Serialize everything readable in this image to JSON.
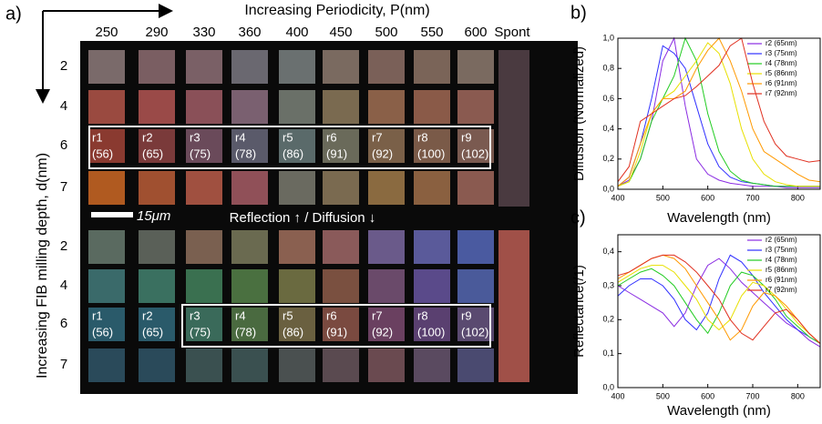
{
  "panel_a": {
    "label": "a)",
    "x_title": "Increasing Periodicity, P(nm)",
    "y_title": "Increasing FIB milling depth, d(nm)",
    "columns": [
      "250",
      "290",
      "330",
      "360",
      "400",
      "450",
      "500",
      "550",
      "600",
      "Spont"
    ],
    "rows_top": [
      "2",
      "4",
      "6",
      "7"
    ],
    "rows_bottom": [
      "2",
      "4",
      "6",
      "7"
    ],
    "scale": "15μm",
    "divider": "Reflection ↑  /  Diffusion ↓",
    "samples": [
      {
        "name": "r1",
        "depth": "(56)"
      },
      {
        "name": "r2",
        "depth": "(65)"
      },
      {
        "name": "r3",
        "depth": "(75)"
      },
      {
        "name": "r4",
        "depth": "(78)"
      },
      {
        "name": "r5",
        "depth": "(86)"
      },
      {
        "name": "r6",
        "depth": "(91)"
      },
      {
        "name": "r7",
        "depth": "(92)"
      },
      {
        "name": "r8",
        "depth": "(100)"
      },
      {
        "name": "r9",
        "depth": "(102)"
      }
    ],
    "tile_colors": [
      [
        "#7a6a6a",
        "#7a5e62",
        "#7a6066",
        "#6a6870",
        "#6a7070",
        "#7a6a60",
        "#7a6058",
        "#7a6458",
        "#7a6a60"
      ],
      [
        "#9a4a40",
        "#9a4a48",
        "#8a5058",
        "#7a6070",
        "#6a7068",
        "#7a6a50",
        "#8a6048",
        "#8a5a48",
        "#8a5a50"
      ],
      [
        "#8a3a30",
        "#7a3a3a",
        "#6a4a5a",
        "#5a5a6a",
        "#5a6a6a",
        "#6a6a5a",
        "#7a6048",
        "#7a5a48",
        "#7a5a50"
      ],
      [
        "#b05a20",
        "#a05030",
        "#a05040",
        "#905058",
        "#6a6a60",
        "#7a6a50",
        "#8a6a40",
        "#8a6040",
        "#8a5a50"
      ],
      [
        "#5a6a60",
        "#5a6058",
        "#7a6050",
        "#6a6a50",
        "#8a6050",
        "#8a5a5a",
        "#6a5a8a",
        "#5a5a9a",
        "#4a5aa0"
      ],
      [
        "#3a6a6a",
        "#3a7060",
        "#3a7050",
        "#4a7040",
        "#6a6a40",
        "#7a5040",
        "#6a4a6a",
        "#5a4a8a",
        "#4a5a9a"
      ],
      [
        "#2a5a6a",
        "#2a5a6a",
        "#3a6a5a",
        "#4a6a40",
        "#6a6040",
        "#7a4a40",
        "#6a4060",
        "#5a4070",
        "#5a4a70"
      ],
      [
        "#2a4a5a",
        "#2a4a5a",
        "#3a5050",
        "#3a5050",
        "#4a5050",
        "#5a4a50",
        "#6a4a50",
        "#5a4a60",
        "#4a4a70"
      ]
    ],
    "spont_colors": [
      "#4a3a40",
      "#a05048"
    ]
  },
  "chart_data": [
    {
      "type": "line",
      "label": "b)",
      "x_label": "Wavelength (nm)",
      "y_label": "Diffusion (Normalized)",
      "x": [
        400,
        425,
        450,
        475,
        500,
        525,
        550,
        575,
        600,
        625,
        650,
        675,
        700,
        725,
        750,
        775,
        800,
        825,
        850
      ],
      "xlim": [
        400,
        850
      ],
      "xticks": [
        400,
        500,
        600,
        700,
        800
      ],
      "ylim": [
        0,
        1.0
      ],
      "yticks": [
        {
          "value": 0,
          "label": "0,0"
        },
        {
          "value": 0.2,
          "label": "0,2"
        },
        {
          "value": 0.4,
          "label": "0,4"
        },
        {
          "value": 0.6,
          "label": "0,6"
        },
        {
          "value": 0.8,
          "label": "0,8"
        },
        {
          "value": 1.0,
          "label": "1,0"
        }
      ],
      "series": [
        {
          "name": "r2 (65nm)",
          "color": "#8a2be2",
          "values": [
            0.02,
            0.06,
            0.2,
            0.45,
            0.85,
            1.0,
            0.55,
            0.2,
            0.1,
            0.06,
            0.04,
            0.03,
            0.02,
            0.02,
            0.02,
            0.01,
            0.01,
            0.01,
            0.01
          ]
        },
        {
          "name": "r3 (75nm)",
          "color": "#3030ff",
          "values": [
            0.02,
            0.08,
            0.3,
            0.6,
            0.95,
            0.9,
            0.8,
            0.55,
            0.3,
            0.15,
            0.08,
            0.05,
            0.04,
            0.03,
            0.02,
            0.02,
            0.02,
            0.02,
            0.02
          ]
        },
        {
          "name": "r4 (78nm)",
          "color": "#22cc22",
          "values": [
            0.02,
            0.05,
            0.2,
            0.45,
            0.6,
            0.75,
            1.0,
            0.85,
            0.5,
            0.25,
            0.12,
            0.06,
            0.04,
            0.03,
            0.02,
            0.02,
            0.02,
            0.02,
            0.02
          ]
        },
        {
          "name": "r5 (86nm)",
          "color": "#e8e000",
          "values": [
            0.02,
            0.05,
            0.25,
            0.5,
            0.6,
            0.65,
            0.75,
            0.85,
            0.97,
            0.9,
            0.7,
            0.4,
            0.2,
            0.1,
            0.05,
            0.03,
            0.02,
            0.02,
            0.02
          ]
        },
        {
          "name": "r6 (91nm)",
          "color": "#ff9900",
          "values": [
            0.02,
            0.08,
            0.3,
            0.5,
            0.6,
            0.6,
            0.65,
            0.8,
            0.92,
            1.0,
            0.85,
            0.65,
            0.4,
            0.25,
            0.2,
            0.15,
            0.1,
            0.06,
            0.05
          ]
        },
        {
          "name": "r7 (92nm)",
          "color": "#e03020",
          "values": [
            0.05,
            0.15,
            0.45,
            0.5,
            0.55,
            0.6,
            0.62,
            0.68,
            0.75,
            0.82,
            0.95,
            1.0,
            0.7,
            0.45,
            0.3,
            0.22,
            0.2,
            0.18,
            0.19
          ]
        }
      ]
    },
    {
      "type": "line",
      "label": "c)",
      "x_label": "Wavelength (nm)",
      "y_label": "Reflectance(/1)",
      "x": [
        400,
        425,
        450,
        475,
        500,
        525,
        550,
        575,
        600,
        625,
        650,
        675,
        700,
        725,
        750,
        775,
        800,
        825,
        850
      ],
      "xlim": [
        400,
        850
      ],
      "xticks": [
        400,
        500,
        600,
        700,
        800
      ],
      "ylim": [
        0,
        0.45
      ],
      "yticks": [
        {
          "value": 0,
          "label": "0,0"
        },
        {
          "value": 0.1,
          "label": "0,1"
        },
        {
          "value": 0.2,
          "label": "0,2"
        },
        {
          "value": 0.3,
          "label": "0,3"
        },
        {
          "value": 0.4,
          "label": "0,4"
        }
      ],
      "series": [
        {
          "name": "r2 (65nm)",
          "color": "#8a2be2",
          "values": [
            0.3,
            0.28,
            0.26,
            0.24,
            0.22,
            0.18,
            0.22,
            0.3,
            0.36,
            0.38,
            0.35,
            0.31,
            0.28,
            0.25,
            0.22,
            0.19,
            0.17,
            0.14,
            0.12
          ]
        },
        {
          "name": "r3 (75nm)",
          "color": "#3030ff",
          "values": [
            0.27,
            0.3,
            0.32,
            0.32,
            0.3,
            0.26,
            0.2,
            0.17,
            0.22,
            0.32,
            0.39,
            0.37,
            0.33,
            0.28,
            0.24,
            0.2,
            0.17,
            0.15,
            0.13
          ]
        },
        {
          "name": "r4 (78nm)",
          "color": "#22cc22",
          "values": [
            0.3,
            0.32,
            0.34,
            0.35,
            0.33,
            0.3,
            0.25,
            0.2,
            0.16,
            0.22,
            0.3,
            0.34,
            0.33,
            0.3,
            0.26,
            0.21,
            0.18,
            0.15,
            0.13
          ]
        },
        {
          "name": "r5 (86nm)",
          "color": "#e8e000",
          "values": [
            0.31,
            0.33,
            0.35,
            0.36,
            0.36,
            0.34,
            0.3,
            0.26,
            0.2,
            0.17,
            0.2,
            0.27,
            0.31,
            0.3,
            0.27,
            0.23,
            0.19,
            0.16,
            0.13
          ]
        },
        {
          "name": "r6 (91nm)",
          "color": "#ff9900",
          "values": [
            0.32,
            0.34,
            0.36,
            0.38,
            0.39,
            0.38,
            0.35,
            0.3,
            0.25,
            0.2,
            0.14,
            0.17,
            0.24,
            0.28,
            0.27,
            0.24,
            0.2,
            0.16,
            0.13
          ]
        },
        {
          "name": "r7 (92nm)",
          "color": "#e03020",
          "values": [
            0.33,
            0.34,
            0.36,
            0.38,
            0.39,
            0.39,
            0.37,
            0.34,
            0.3,
            0.26,
            0.2,
            0.16,
            0.14,
            0.18,
            0.22,
            0.23,
            0.2,
            0.16,
            0.13
          ]
        }
      ]
    }
  ]
}
